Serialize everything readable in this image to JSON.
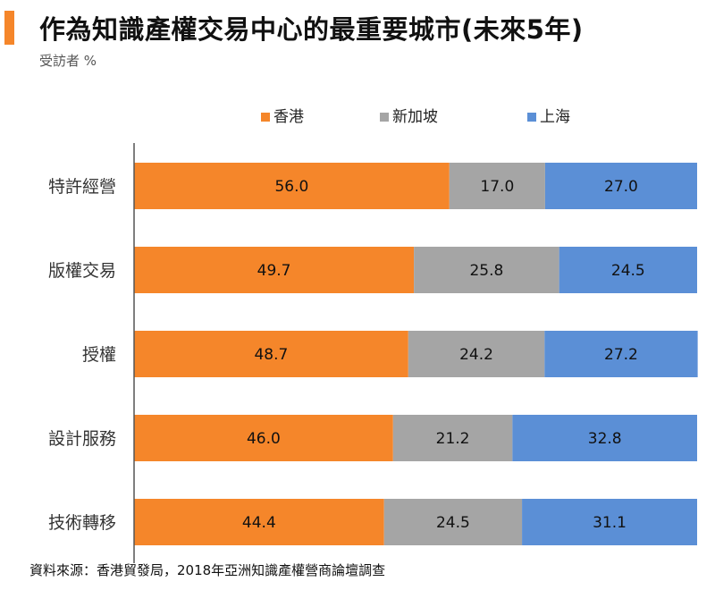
{
  "title": "作為知識產權交易中心的最重要城市(未來5年)",
  "subtitle": "受訪者 %",
  "source": "資料來源：香港貿發局，2018年亞洲知識產權營商論壇調查",
  "chart_data": {
    "type": "bar",
    "orientation": "horizontal",
    "stacked": true,
    "categories": [
      "特許經營",
      "版權交易",
      "授權",
      "設計服務",
      "技術轉移"
    ],
    "series": [
      {
        "name": "香港",
        "color": "#f5862a",
        "values": [
          56.0,
          49.7,
          48.7,
          46.0,
          44.4
        ]
      },
      {
        "name": "新加坡",
        "color": "#a5a5a5",
        "values": [
          17.0,
          25.8,
          24.2,
          21.2,
          24.5
        ]
      },
      {
        "name": "上海",
        "color": "#5b8fd6",
        "values": [
          27.0,
          24.5,
          27.2,
          32.8,
          31.1
        ]
      }
    ],
    "xlim": [
      0,
      100
    ],
    "legend_position": "top",
    "grid": false,
    "data_labels": true
  }
}
